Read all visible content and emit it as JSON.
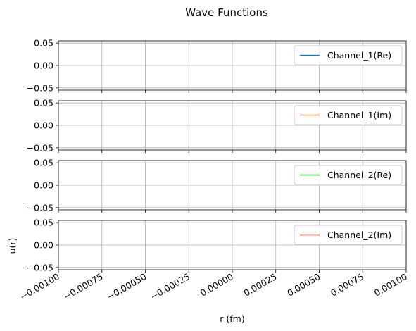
{
  "chart_data": {
    "type": "line",
    "title": "Wave Functions",
    "xlabel": "r (fm)",
    "ylabel": "u(r)",
    "xlim": [
      -0.001,
      0.001
    ],
    "ylim": [
      -0.055,
      0.055
    ],
    "grid": true,
    "shared_x": true,
    "x_tick_labels": [
      "−0.00100",
      "−0.00075",
      "−0.00050",
      "−0.00025",
      "0.00000",
      "0.00025",
      "0.00050",
      "0.00075",
      "0.00100"
    ],
    "y_tick_labels": [
      "0.05",
      "0.00",
      "−0.05"
    ],
    "subplots": [
      {
        "legend_location": "upper right",
        "series": [
          {
            "name": "Channel_1(Re)",
            "color": "#1f77b4",
            "x": [],
            "y": []
          }
        ]
      },
      {
        "legend_location": "upper right",
        "series": [
          {
            "name": "Channel_1(Im)",
            "color": "#ff7f0e",
            "x": [],
            "y": []
          }
        ]
      },
      {
        "legend_location": "upper right",
        "series": [
          {
            "name": "Channel_2(Re)",
            "color": "#2ca02c",
            "x": [],
            "y": []
          }
        ]
      },
      {
        "legend_location": "upper right",
        "series": [
          {
            "name": "Channel_2(Im)",
            "color": "#d62728",
            "x": [],
            "y": []
          }
        ]
      }
    ]
  }
}
